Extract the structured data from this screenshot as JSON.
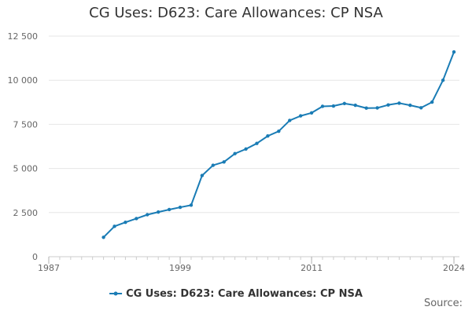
{
  "chart_data": {
    "type": "line",
    "title": "CG Uses: D623: Care Allowances: CP NSA",
    "xlabel": "",
    "ylabel": "",
    "x_ticks": [
      "1987",
      "1999",
      "2011",
      "2024"
    ],
    "y_ticks": [
      "0",
      "2 500",
      "5 000",
      "7 500",
      "10 000",
      "12 500"
    ],
    "xlim": [
      1987,
      2024.5
    ],
    "ylim": [
      0,
      12500
    ],
    "grid": "horizontal",
    "legend_position": "bottom",
    "series": [
      {
        "name": "CG Uses: D623: Care Allowances: CP NSA",
        "color": "#1a7cb5",
        "x": [
          1992,
          1993,
          1994,
          1995,
          1996,
          1997,
          1998,
          1999,
          2000,
          2001,
          2002,
          2003,
          2004,
          2005,
          2006,
          2007,
          2008,
          2009,
          2010,
          2011,
          2012,
          2013,
          2014,
          2015,
          2016,
          2017,
          2018,
          2019,
          2020,
          2021,
          2022,
          2023,
          2024
        ],
        "y": [
          1100,
          1720,
          1950,
          2160,
          2380,
          2530,
          2670,
          2800,
          2920,
          4600,
          5180,
          5370,
          5840,
          6100,
          6420,
          6840,
          7110,
          7720,
          7980,
          8150,
          8520,
          8540,
          8680,
          8580,
          8420,
          8430,
          8600,
          8700,
          8580,
          8440,
          8760,
          10000,
          11600
        ]
      }
    ]
  },
  "source_label": "Source:"
}
